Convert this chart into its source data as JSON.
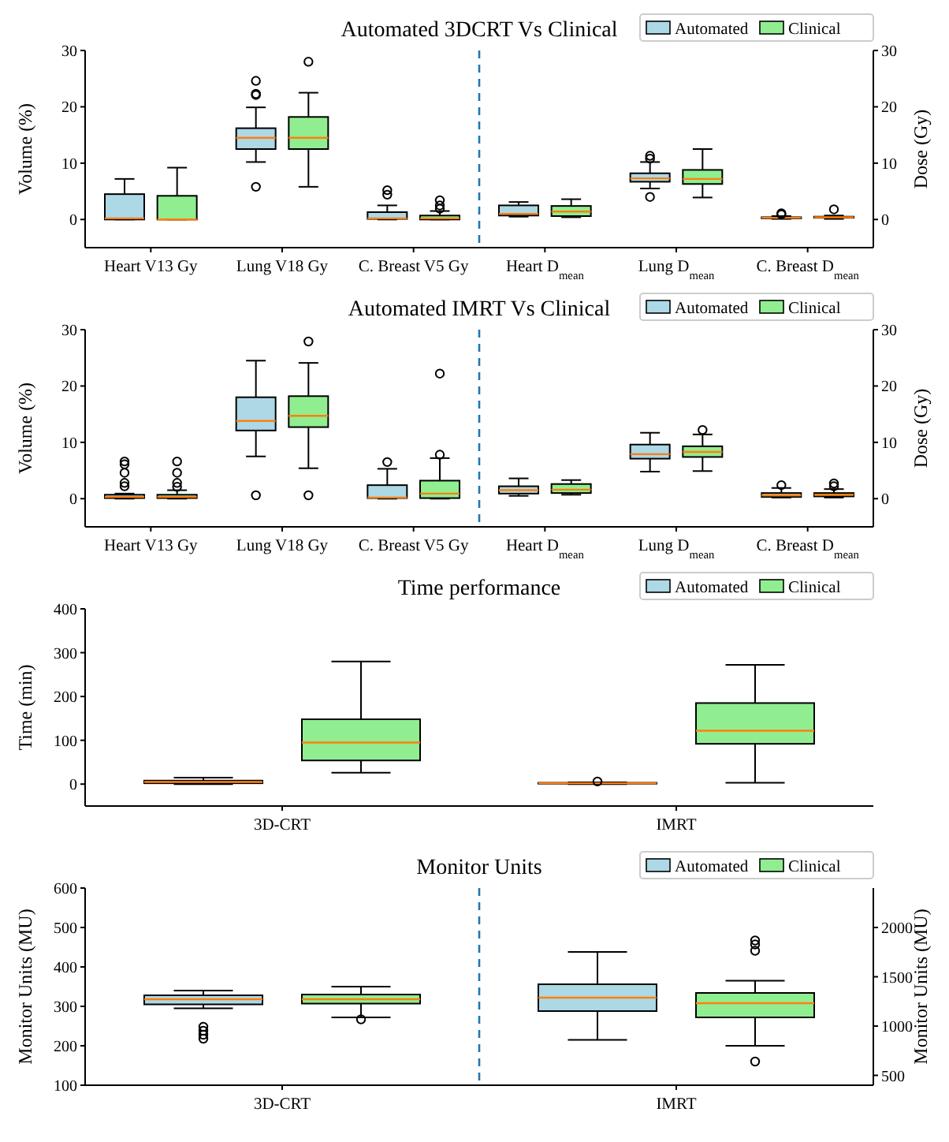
{
  "chart_data": [
    {
      "type": "box",
      "title": "Automated 3DCRT Vs Clinical",
      "ylabel": "Volume (%)",
      "y2label": "Dose (Gy)",
      "categories": [
        "Heart V13 Gy",
        "Lung V18 Gy",
        "C. Breast V5 Gy",
        "Heart D$_{mean}$",
        "Lung D$_{mean}$",
        "C. Breast D$_{mean}$"
      ],
      "ylim": [
        -5,
        30
      ],
      "yticks": [
        0,
        10,
        20,
        30
      ],
      "y2lim": [
        -5,
        30
      ],
      "y2ticks": [
        0,
        10,
        20,
        30
      ],
      "legend": "top right",
      "series": [
        {
          "name": "Automated",
          "color": "#add8e6",
          "boxes": [
            {
              "low": 0,
              "q1": 0,
              "median": 0.2,
              "q3": 4.5,
              "high": 7.2
            },
            {
              "low": 10.2,
              "q1": 12.5,
              "median": 14.5,
              "q3": 16.2,
              "high": 19.9,
              "outliers": [
                5.8,
                22.1,
                22.3,
                24.6
              ]
            },
            {
              "low": 0,
              "q1": 0.1,
              "median": 0.2,
              "q3": 1.3,
              "high": 2.5,
              "outliers": [
                4.4,
                5.2
              ]
            },
            null,
            null,
            null
          ]
        },
        {
          "name": "Clinical",
          "color": "#90ee90",
          "boxes": [
            {
              "low": 0,
              "q1": 0,
              "median": 0,
              "q3": 4.2,
              "high": 9.2
            },
            {
              "low": 5.8,
              "q1": 12.5,
              "median": 14.5,
              "q3": 18.2,
              "high": 22.5,
              "outliers": [
                28
              ]
            },
            {
              "low": 0,
              "q1": 0,
              "median": 0.2,
              "q3": 0.7,
              "high": 1.5,
              "outliers": [
                1.9,
                2.5,
                3.4
              ]
            },
            null,
            null,
            null
          ]
        },
        {
          "color": "#add8e6",
          "axis": "y2",
          "boxes": [
            null,
            null,
            null,
            {
              "low": 0.5,
              "q1": 0.7,
              "median": 1,
              "q3": 2.5,
              "high": 3.1
            },
            {
              "low": 5.5,
              "q1": 6.7,
              "median": 7.3,
              "q3": 8.2,
              "high": 10.2,
              "outliers": [
                4,
                10.8,
                11.3
              ]
            },
            {
              "low": 0.1,
              "q1": 0.2,
              "median": 0.3,
              "q3": 0.4,
              "high": 0.6,
              "outliers": [
                0.9,
                1.1
              ]
            }
          ]
        },
        {
          "color": "#90ee90",
          "axis": "y2",
          "boxes": [
            null,
            null,
            null,
            {
              "low": 0.4,
              "q1": 0.6,
              "median": 1.4,
              "q3": 2.4,
              "high": 3.6
            },
            {
              "low": 3.9,
              "q1": 6.3,
              "median": 7.2,
              "q3": 8.8,
              "high": 12.5
            },
            {
              "low": 0.1,
              "q1": 0.3,
              "median": 0.4,
              "q3": 0.5,
              "high": 0.7,
              "outliers": [
                1.8
              ]
            }
          ]
        }
      ]
    },
    {
      "type": "box",
      "title": "Automated IMRT Vs Clinical",
      "ylabel": "Volume (%)",
      "y2label": "Dose (Gy)",
      "categories": [
        "Heart V13 Gy",
        "Lung V18 Gy",
        "C. Breast V5 Gy",
        "Heart D$_{mean}$",
        "Lung D$_{mean}$",
        "C. Breast D$_{mean}$"
      ],
      "ylim": [
        -5,
        30
      ],
      "yticks": [
        0,
        10,
        20,
        30
      ],
      "y2lim": [
        -5,
        30
      ],
      "y2ticks": [
        0,
        10,
        20,
        30
      ],
      "legend": "top right",
      "series": [
        {
          "name": "Automated",
          "color": "#add8e6",
          "boxes": [
            {
              "low": 0,
              "q1": 0.1,
              "median": 0.3,
              "q3": 0.7,
              "high": 0.9,
              "outliers": [
                2.2,
                2.8,
                4.6,
                6.1,
                6.6
              ]
            },
            {
              "low": 7.5,
              "q1": 12.1,
              "median": 13.8,
              "q3": 18,
              "high": 24.5,
              "outliers": [
                0.6
              ]
            },
            {
              "low": 0,
              "q1": 0.1,
              "median": 0.2,
              "q3": 2.4,
              "high": 5.3,
              "outliers": [
                6.5
              ]
            },
            null,
            null,
            null
          ]
        },
        {
          "name": "Clinical",
          "color": "#90ee90",
          "boxes": [
            {
              "low": 0,
              "q1": 0.1,
              "median": 0.3,
              "q3": 0.7,
              "high": 1.5,
              "outliers": [
                2.1,
                2.8,
                4.6,
                6.6
              ]
            },
            {
              "low": 5.4,
              "q1": 12.7,
              "median": 14.7,
              "q3": 18.2,
              "high": 24.1,
              "outliers": [
                0.6,
                27.9
              ]
            },
            {
              "low": 0,
              "q1": 0.1,
              "median": 0.9,
              "q3": 3.2,
              "high": 7.2,
              "outliers": [
                7.8,
                22.2
              ]
            },
            null,
            null,
            null
          ]
        },
        {
          "color": "#add8e6",
          "axis": "y2",
          "boxes": [
            null,
            null,
            null,
            {
              "low": 0.5,
              "q1": 0.9,
              "median": 1.5,
              "q3": 2.2,
              "high": 3.6
            },
            {
              "low": 4.8,
              "q1": 7.1,
              "median": 7.9,
              "q3": 9.6,
              "high": 11.7
            },
            {
              "low": 0.2,
              "q1": 0.3,
              "median": 0.6,
              "q3": 1,
              "high": 1.9,
              "outliers": [
                2.4
              ]
            }
          ]
        },
        {
          "color": "#90ee90",
          "axis": "y2",
          "boxes": [
            null,
            null,
            null,
            {
              "low": 0.7,
              "q1": 1,
              "median": 1.6,
              "q3": 2.6,
              "high": 3.3
            },
            {
              "low": 4.9,
              "q1": 7.4,
              "median": 8.3,
              "q3": 9.3,
              "high": 11.4,
              "outliers": [
                12.2
              ]
            },
            {
              "low": 0.2,
              "q1": 0.4,
              "median": 0.7,
              "q3": 1,
              "high": 1.7,
              "outliers": [
                2.2,
                2.7
              ]
            }
          ]
        }
      ]
    },
    {
      "type": "box",
      "title": "Time performance",
      "ylabel": "Time (min)",
      "categories": [
        "3D-CRT",
        "IMRT"
      ],
      "ylim": [
        -50,
        400
      ],
      "yticks": [
        0,
        100,
        200,
        300,
        400
      ],
      "legend": "top right",
      "series": [
        {
          "name": "Automated",
          "color": "#add8e6",
          "boxes": [
            {
              "low": 0,
              "q1": 2,
              "median": 5,
              "q3": 8,
              "high": 15
            },
            {
              "low": 0,
              "q1": 1,
              "median": 2,
              "q3": 3,
              "high": 4,
              "outliers": [
                6
              ]
            }
          ]
        },
        {
          "name": "Clinical",
          "color": "#90ee90",
          "boxes": [
            {
              "low": 26,
              "q1": 54,
              "median": 95,
              "q3": 148,
              "high": 280
            },
            {
              "low": 3,
              "q1": 92,
              "median": 122,
              "q3": 185,
              "high": 272
            }
          ]
        }
      ]
    },
    {
      "type": "box",
      "title": "Monitor Units",
      "ylabel": "Monitor Units (MU)",
      "y2label": "Monitor Units (MU)",
      "categories": [
        "3D-CRT",
        "IMRT"
      ],
      "ylim": [
        100,
        600
      ],
      "yticks": [
        100,
        200,
        300,
        400,
        500,
        600
      ],
      "y2lim": [
        400,
        2400
      ],
      "y2ticks": [
        500,
        1000,
        1500,
        2000
      ],
      "legend": "top right",
      "series": [
        {
          "name": "Automated",
          "color": "#add8e6",
          "boxes": [
            {
              "low": 295,
              "q1": 305,
              "median": 318,
              "q3": 328,
              "high": 340,
              "outliers": [
                218,
                228,
                238,
                248
              ]
            },
            null
          ]
        },
        {
          "name": "Clinical",
          "color": "#90ee90",
          "boxes": [
            {
              "low": 272,
              "q1": 307,
              "median": 318,
              "q3": 330,
              "high": 350,
              "outliers": [
                267
              ]
            },
            null
          ]
        },
        {
          "color": "#add8e6",
          "axis": "y2",
          "boxes": [
            null,
            {
              "low": 860,
              "q1": 1152,
              "median": 1288,
              "q3": 1424,
              "high": 1752
            }
          ]
        },
        {
          "color": "#90ee90",
          "axis": "y2",
          "boxes": [
            null,
            {
              "low": 800,
              "q1": 1088,
              "median": 1232,
              "q3": 1336,
              "high": 1460,
              "outliers": [
                640,
                1764,
                1828,
                1868
              ]
            }
          ]
        }
      ]
    }
  ]
}
